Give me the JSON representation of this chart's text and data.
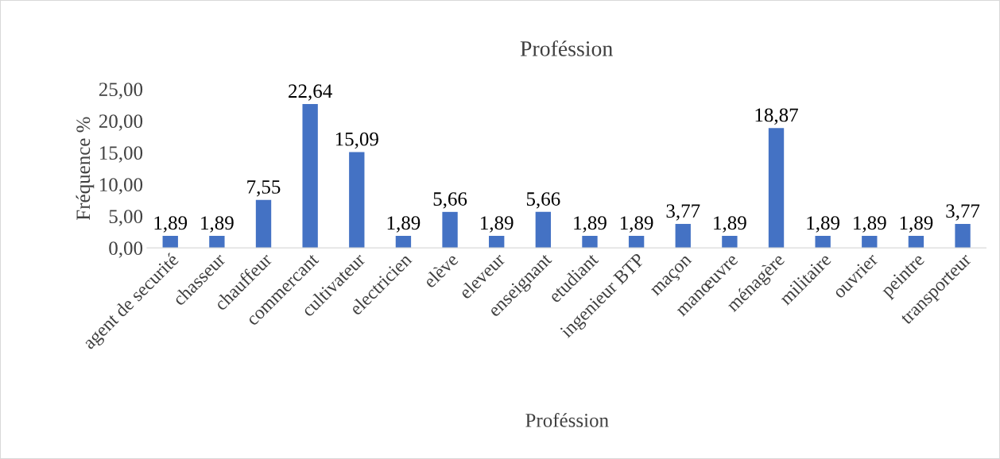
{
  "chart_data": {
    "type": "bar",
    "title": "Proféssion",
    "xlabel": "Proféssion",
    "ylabel": "Fréquence %",
    "categories": [
      "agent de securité",
      "chasseur",
      "chauffeur",
      "commercant",
      "cultivateur",
      "electricien",
      "elève",
      "eleveur",
      "enseignant",
      "etudiant",
      "ingenieur BTP",
      "maçon",
      "manœuvre",
      "ménagère",
      "militaire",
      "ouvrier",
      "peintre",
      "transporteur"
    ],
    "values": [
      1.89,
      1.89,
      7.55,
      22.64,
      15.09,
      1.89,
      5.66,
      1.89,
      5.66,
      1.89,
      1.89,
      3.77,
      1.89,
      18.87,
      1.89,
      1.89,
      1.89,
      3.77
    ],
    "value_labels": [
      "1,89",
      "1,89",
      "7,55",
      "22,64",
      "15,09",
      "1,89",
      "5,66",
      "1,89",
      "5,66",
      "1,89",
      "1,89",
      "3,77",
      "1,89",
      "18,87",
      "1,89",
      "1,89",
      "1,89",
      "3,77"
    ],
    "color": "#4472c4",
    "ylim": [
      0,
      25
    ],
    "yticks": [
      {
        "value": 0,
        "label": "0,00"
      },
      {
        "value": 5,
        "label": "5,00"
      },
      {
        "value": 10,
        "label": "10,00"
      },
      {
        "value": 15,
        "label": "15,00"
      },
      {
        "value": 20,
        "label": "20,00"
      },
      {
        "value": 25,
        "label": "25,00"
      }
    ],
    "grid": false
  }
}
